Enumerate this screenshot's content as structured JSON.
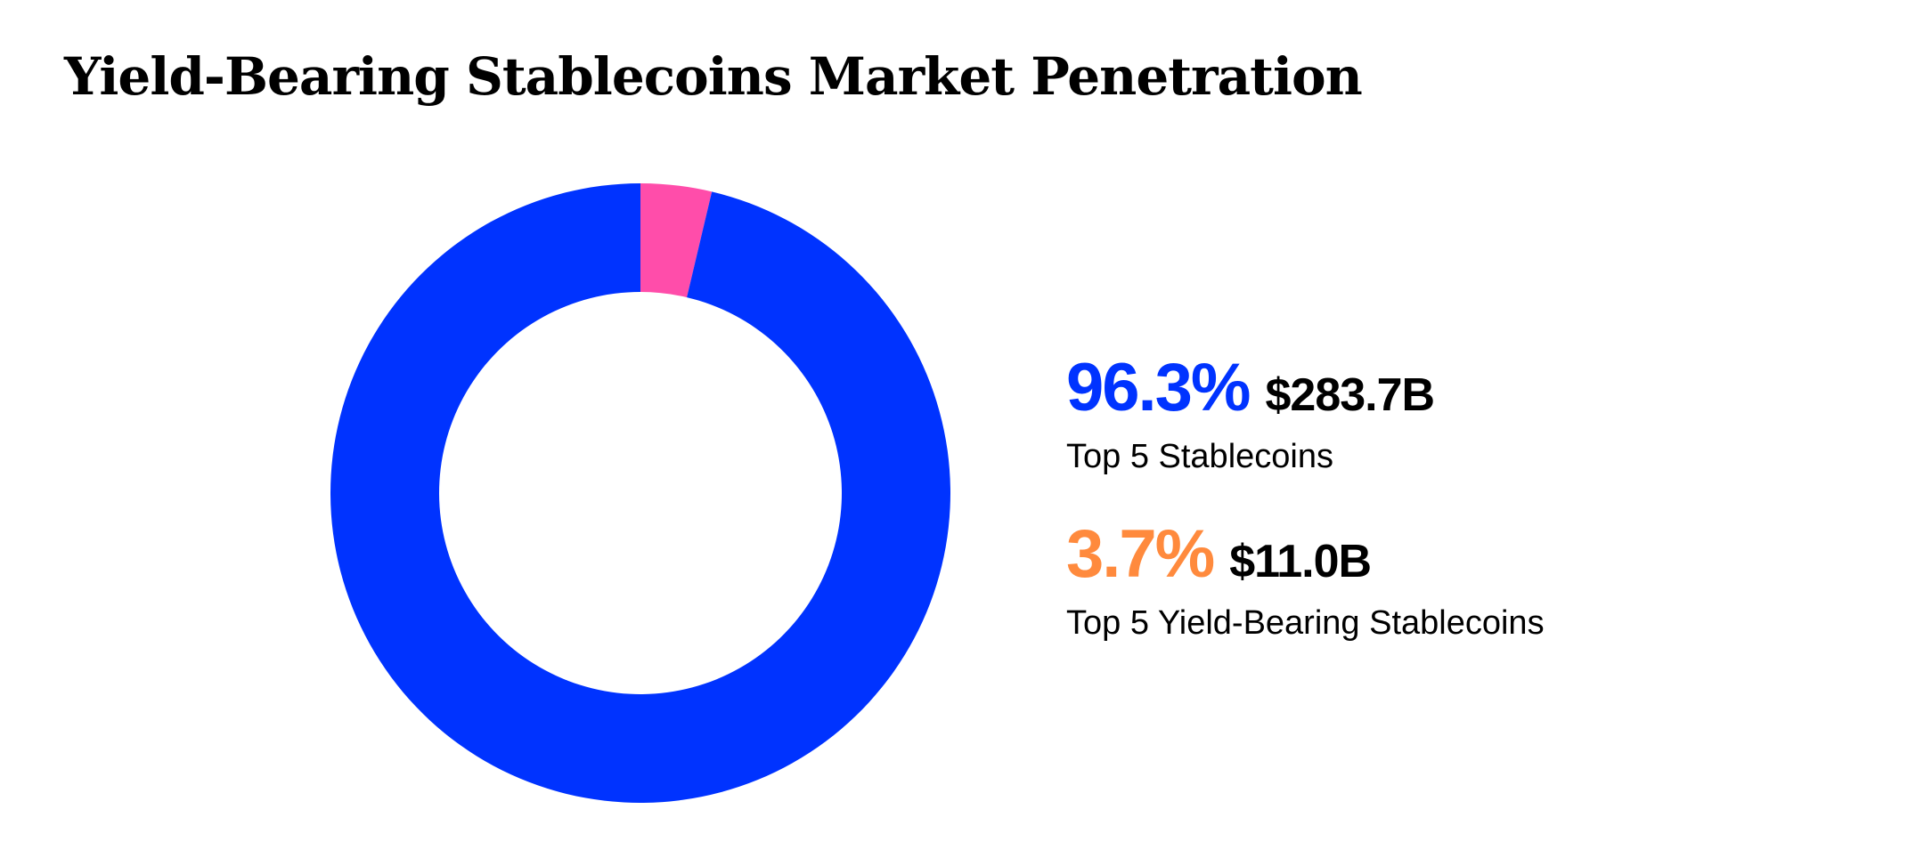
{
  "title": "Yield-Bearing Stablecoins Market Penetration",
  "chart_data": {
    "type": "pie",
    "variant": "donut",
    "slices": [
      {
        "label": "Top 5 Stablecoins",
        "percent": 96.3,
        "value": "$283.7B",
        "color": "#0033FF",
        "legend_color": "#0033FF"
      },
      {
        "label": "Top 5 Yield-Bearing Stablecoins",
        "percent": 3.7,
        "value": "$11.0B",
        "color": "#FF4DAA",
        "legend_color": "#FF8A3D"
      }
    ],
    "start_angle_deg": 0,
    "direction": "counterclockwise",
    "legend_placement": "right"
  }
}
